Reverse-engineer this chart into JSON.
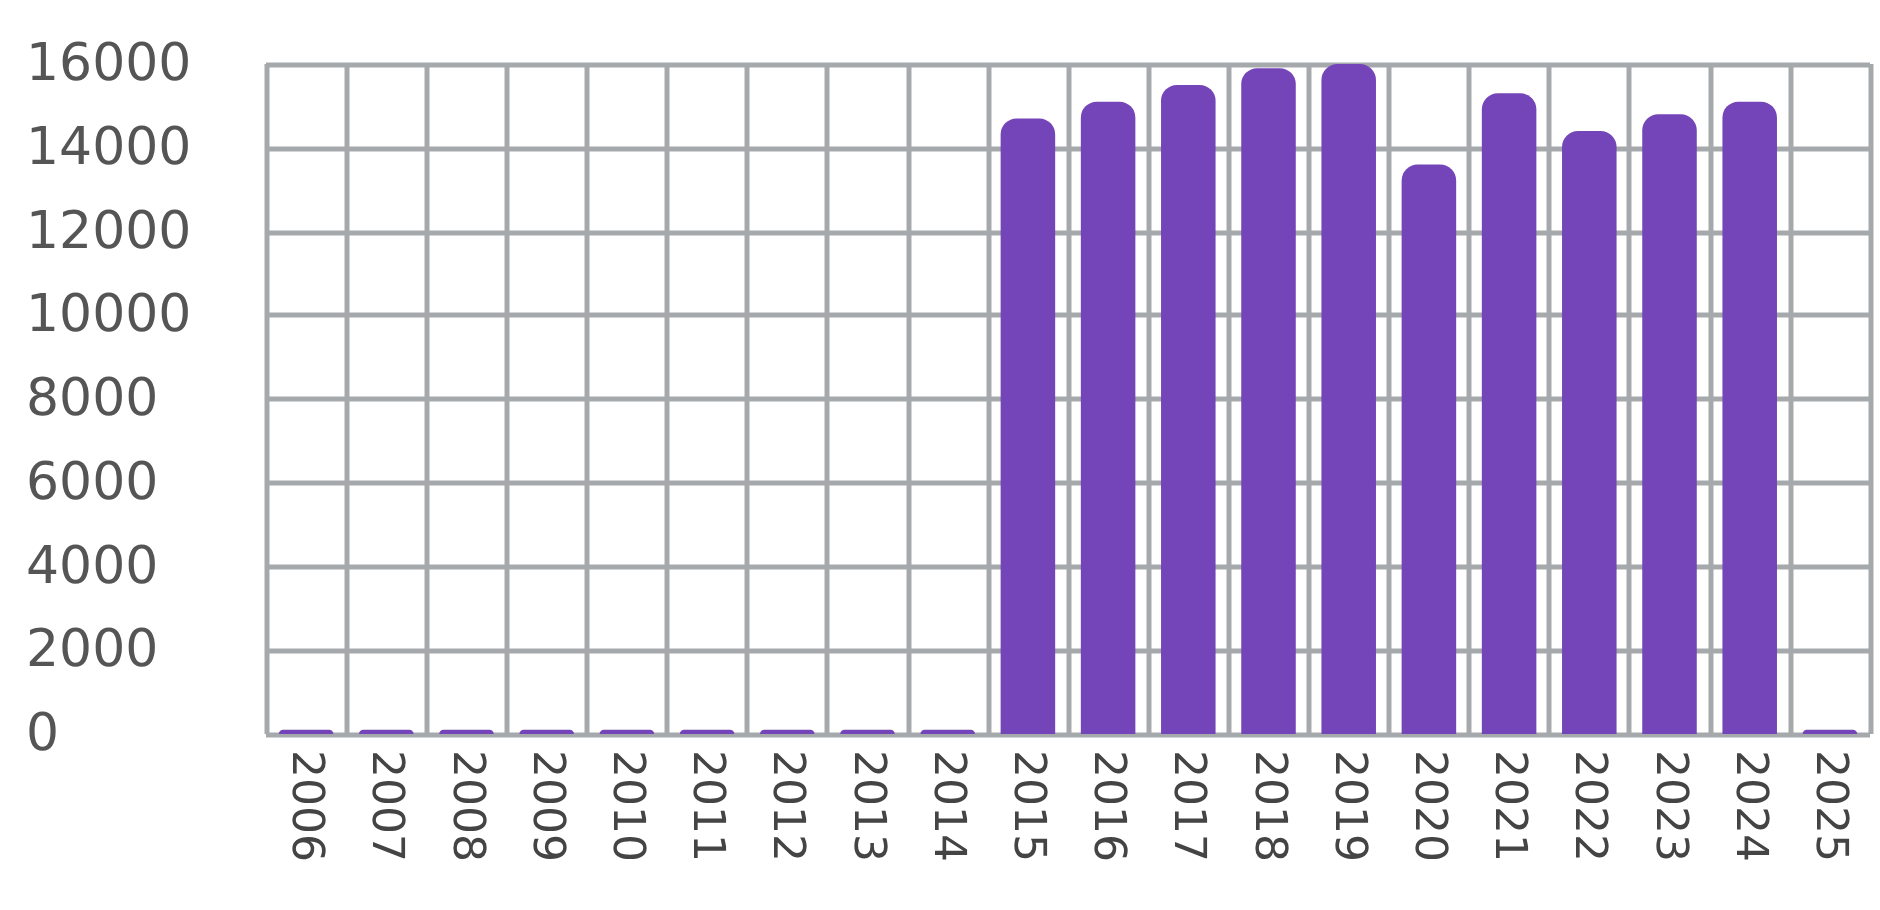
{
  "chart_data": {
    "type": "bar",
    "categories": [
      "2006",
      "2007",
      "2008",
      "2009",
      "2010",
      "2011",
      "2012",
      "2013",
      "2014",
      "2015",
      "2016",
      "2017",
      "2018",
      "2019",
      "2020",
      "2021",
      "2022",
      "2023",
      "2024",
      "2025"
    ],
    "values": [
      100,
      100,
      100,
      100,
      100,
      100,
      100,
      100,
      100,
      14700,
      15100,
      15500,
      15900,
      16000,
      13600,
      15300,
      14400,
      14800,
      15100,
      100
    ],
    "color": "#7445b8",
    "ylim": [
      0,
      16000
    ],
    "yticks": [
      0,
      2000,
      4000,
      6000,
      8000,
      10000,
      12000,
      14000,
      16000
    ],
    "grid": true
  }
}
